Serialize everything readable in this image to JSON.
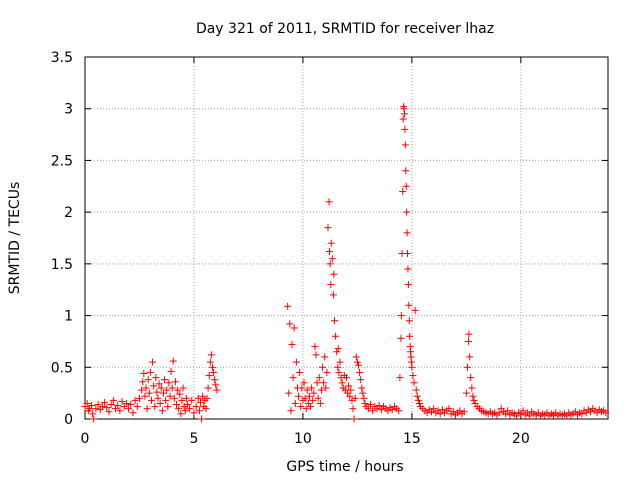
{
  "chart_data": {
    "type": "scatter",
    "title": "Day 321 of 2011, SRMTID for receiver lhaz",
    "xlabel": "GPS time / hours",
    "ylabel": "SRMTID / TECUs",
    "xlim": [
      0,
      24
    ],
    "ylim": [
      0,
      3.5
    ],
    "x_ticks": [
      0,
      5,
      10,
      15,
      20
    ],
    "y_ticks": [
      0,
      0.5,
      1,
      1.5,
      2,
      2.5,
      3,
      3.5
    ],
    "grid": true,
    "marker": "+",
    "color": "#ff0000",
    "series": [
      {
        "points": [
          [
            0.0,
            0.12
          ],
          [
            0.1,
            0.15
          ],
          [
            0.15,
            0.08
          ],
          [
            0.2,
            0.1
          ],
          [
            0.3,
            0.13
          ],
          [
            0.35,
            0.05
          ],
          [
            0.4,
            0.0
          ],
          [
            0.5,
            0.1
          ],
          [
            0.6,
            0.14
          ],
          [
            0.7,
            0.09
          ],
          [
            0.8,
            0.12
          ],
          [
            0.9,
            0.16
          ],
          [
            1.0,
            0.11
          ],
          [
            1.1,
            0.07
          ],
          [
            1.2,
            0.14
          ],
          [
            1.3,
            0.18
          ],
          [
            1.4,
            0.1
          ],
          [
            1.5,
            0.13
          ],
          [
            1.6,
            0.08
          ],
          [
            1.7,
            0.17
          ],
          [
            1.8,
            0.12
          ],
          [
            1.9,
            0.15
          ],
          [
            2.0,
            0.1
          ],
          [
            2.1,
            0.14
          ],
          [
            2.2,
            0.06
          ],
          [
            2.3,
            0.18
          ],
          [
            2.4,
            0.12
          ],
          [
            2.5,
            0.2
          ],
          [
            2.6,
            0.28
          ],
          [
            2.65,
            0.36
          ],
          [
            2.7,
            0.44
          ],
          [
            2.75,
            0.22
          ],
          [
            2.8,
            0.3
          ],
          [
            2.85,
            0.1
          ],
          [
            2.9,
            0.38
          ],
          [
            2.95,
            0.25
          ],
          [
            3.0,
            0.45
          ],
          [
            3.05,
            0.18
          ],
          [
            3.1,
            0.55
          ],
          [
            3.15,
            0.32
          ],
          [
            3.2,
            0.12
          ],
          [
            3.25,
            0.4
          ],
          [
            3.3,
            0.26
          ],
          [
            3.35,
            0.2
          ],
          [
            3.4,
            0.34
          ],
          [
            3.45,
            0.15
          ],
          [
            3.5,
            0.3
          ],
          [
            3.55,
            0.08
          ],
          [
            3.6,
            0.25
          ],
          [
            3.65,
            0.38
          ],
          [
            3.7,
            0.18
          ],
          [
            3.75,
            0.28
          ],
          [
            3.8,
            0.12
          ],
          [
            3.85,
            0.35
          ],
          [
            3.9,
            0.22
          ],
          [
            3.95,
            0.46
          ],
          [
            4.0,
            0.3
          ],
          [
            4.05,
            0.56
          ],
          [
            4.1,
            0.2
          ],
          [
            4.15,
            0.36
          ],
          [
            4.2,
            0.14
          ],
          [
            4.25,
            0.28
          ],
          [
            4.3,
            0.1
          ],
          [
            4.35,
            0.24
          ],
          [
            4.4,
            0.05
          ],
          [
            4.45,
            0.18
          ],
          [
            4.5,
            0.3
          ],
          [
            4.55,
            0.12
          ],
          [
            4.6,
            0.08
          ],
          [
            4.65,
            0.2
          ],
          [
            4.7,
            0.14
          ],
          [
            4.8,
            0.1
          ],
          [
            4.9,
            0.18
          ],
          [
            5.0,
            0.06
          ],
          [
            5.1,
            0.12
          ],
          [
            5.2,
            0.2
          ],
          [
            5.25,
            0.08
          ],
          [
            5.3,
            0.16
          ],
          [
            5.35,
            0.0
          ],
          [
            5.4,
            0.22
          ],
          [
            5.45,
            0.12
          ],
          [
            5.5,
            0.18
          ],
          [
            5.55,
            0.1
          ],
          [
            5.6,
            0.2
          ],
          [
            5.65,
            0.3
          ],
          [
            5.7,
            0.42
          ],
          [
            5.75,
            0.55
          ],
          [
            5.8,
            0.62
          ],
          [
            5.85,
            0.5
          ],
          [
            5.9,
            0.45
          ],
          [
            5.95,
            0.38
          ],
          [
            6.0,
            0.33
          ],
          [
            6.05,
            0.28
          ],
          [
            9.3,
            1.09
          ],
          [
            9.35,
            0.25
          ],
          [
            9.4,
            0.92
          ],
          [
            9.45,
            0.08
          ],
          [
            9.5,
            0.72
          ],
          [
            9.55,
            0.4
          ],
          [
            9.6,
            0.88
          ],
          [
            9.65,
            0.15
          ],
          [
            9.7,
            0.55
          ],
          [
            9.75,
            0.3
          ],
          [
            9.8,
            0.22
          ],
          [
            9.85,
            0.45
          ],
          [
            9.9,
            0.12
          ],
          [
            9.95,
            0.3
          ],
          [
            10.0,
            0.18
          ],
          [
            10.05,
            0.35
          ],
          [
            10.1,
            0.2
          ],
          [
            10.15,
            0.1
          ],
          [
            10.2,
            0.28
          ],
          [
            10.25,
            0.15
          ],
          [
            10.3,
            0.22
          ],
          [
            10.35,
            0.12
          ],
          [
            10.4,
            0.3
          ],
          [
            10.45,
            0.18
          ],
          [
            10.5,
            0.25
          ],
          [
            10.55,
            0.7
          ],
          [
            10.6,
            0.62
          ],
          [
            10.65,
            0.35
          ],
          [
            10.7,
            0.2
          ],
          [
            10.75,
            0.4
          ],
          [
            10.8,
            0.15
          ],
          [
            10.85,
            0.28
          ],
          [
            10.9,
            0.5
          ],
          [
            10.95,
            0.35
          ],
          [
            11.0,
            0.6
          ],
          [
            11.05,
            0.3
          ],
          [
            11.1,
            0.45
          ],
          [
            11.15,
            1.85
          ],
          [
            11.2,
            2.1
          ],
          [
            11.22,
            1.62
          ],
          [
            11.25,
            1.5
          ],
          [
            11.28,
            1.3
          ],
          [
            11.3,
            1.7
          ],
          [
            11.35,
            1.55
          ],
          [
            11.4,
            1.2
          ],
          [
            11.42,
            1.4
          ],
          [
            11.45,
            0.95
          ],
          [
            11.5,
            0.8
          ],
          [
            11.55,
            0.65
          ],
          [
            11.6,
            0.5
          ],
          [
            11.62,
            0.68
          ],
          [
            11.65,
            0.45
          ],
          [
            11.7,
            0.55
          ],
          [
            11.75,
            0.4
          ],
          [
            11.8,
            0.35
          ],
          [
            11.85,
            0.3
          ],
          [
            11.9,
            0.42
          ],
          [
            11.95,
            0.28
          ],
          [
            12.0,
            0.4
          ],
          [
            12.05,
            0.25
          ],
          [
            12.1,
            0.32
          ],
          [
            12.15,
            0.22
          ],
          [
            12.2,
            0.28
          ],
          [
            12.25,
            0.18
          ],
          [
            12.3,
            0.1
          ],
          [
            12.35,
            0.0
          ],
          [
            12.4,
            0.2
          ],
          [
            12.45,
            0.6
          ],
          [
            12.5,
            0.55
          ],
          [
            12.55,
            0.52
          ],
          [
            12.6,
            0.45
          ],
          [
            12.65,
            0.38
          ],
          [
            12.7,
            0.3
          ],
          [
            12.75,
            0.25
          ],
          [
            12.8,
            0.2
          ],
          [
            12.85,
            0.15
          ],
          [
            12.9,
            0.12
          ],
          [
            13.0,
            0.1
          ],
          [
            13.1,
            0.14
          ],
          [
            13.2,
            0.08
          ],
          [
            13.3,
            0.12
          ],
          [
            13.4,
            0.1
          ],
          [
            13.5,
            0.13
          ],
          [
            13.6,
            0.09
          ],
          [
            13.7,
            0.12
          ],
          [
            13.8,
            0.1
          ],
          [
            13.9,
            0.08
          ],
          [
            14.0,
            0.11
          ],
          [
            14.1,
            0.09
          ],
          [
            14.2,
            0.12
          ],
          [
            14.3,
            0.1
          ],
          [
            14.4,
            0.08
          ],
          [
            14.45,
            0.4
          ],
          [
            14.5,
            0.78
          ],
          [
            14.52,
            1.0
          ],
          [
            14.55,
            1.6
          ],
          [
            14.58,
            2.2
          ],
          [
            14.6,
            2.9
          ],
          [
            14.62,
            3.02
          ],
          [
            14.64,
            3.0
          ],
          [
            14.66,
            2.95
          ],
          [
            14.68,
            2.8
          ],
          [
            14.7,
            2.65
          ],
          [
            14.72,
            2.4
          ],
          [
            14.74,
            2.25
          ],
          [
            14.76,
            2.0
          ],
          [
            14.78,
            1.8
          ],
          [
            14.8,
            1.6
          ],
          [
            14.82,
            1.45
          ],
          [
            14.84,
            1.3
          ],
          [
            14.86,
            1.1
          ],
          [
            14.88,
            0.95
          ],
          [
            14.9,
            0.8
          ],
          [
            14.92,
            0.7
          ],
          [
            14.94,
            0.65
          ],
          [
            14.96,
            0.6
          ],
          [
            14.98,
            0.55
          ],
          [
            15.0,
            0.5
          ],
          [
            15.05,
            0.42
          ],
          [
            15.1,
            0.35
          ],
          [
            15.15,
            1.05
          ],
          [
            15.2,
            0.28
          ],
          [
            15.25,
            0.22
          ],
          [
            15.3,
            0.18
          ],
          [
            15.35,
            0.15
          ],
          [
            15.4,
            0.12
          ],
          [
            15.5,
            0.1
          ],
          [
            15.6,
            0.08
          ],
          [
            15.7,
            0.06
          ],
          [
            15.8,
            0.09
          ],
          [
            15.9,
            0.07
          ],
          [
            16.0,
            0.1
          ],
          [
            16.1,
            0.06
          ],
          [
            16.2,
            0.08
          ],
          [
            16.3,
            0.05
          ],
          [
            16.4,
            0.09
          ],
          [
            16.5,
            0.06
          ],
          [
            16.6,
            0.08
          ],
          [
            16.7,
            0.1
          ],
          [
            16.8,
            0.05
          ],
          [
            16.9,
            0.07
          ],
          [
            17.0,
            0.04
          ],
          [
            17.1,
            0.06
          ],
          [
            17.2,
            0.08
          ],
          [
            17.3,
            0.05
          ],
          [
            17.4,
            0.07
          ],
          [
            17.5,
            0.25
          ],
          [
            17.55,
            0.5
          ],
          [
            17.6,
            0.75
          ],
          [
            17.62,
            0.82
          ],
          [
            17.65,
            0.6
          ],
          [
            17.7,
            0.4
          ],
          [
            17.75,
            0.3
          ],
          [
            17.8,
            0.22
          ],
          [
            17.85,
            0.18
          ],
          [
            17.9,
            0.15
          ],
          [
            18.0,
            0.12
          ],
          [
            18.1,
            0.1
          ],
          [
            18.2,
            0.08
          ],
          [
            18.3,
            0.07
          ],
          [
            18.4,
            0.06
          ],
          [
            18.5,
            0.05
          ],
          [
            18.6,
            0.07
          ],
          [
            18.7,
            0.05
          ],
          [
            18.8,
            0.06
          ],
          [
            18.9,
            0.04
          ],
          [
            19.0,
            0.06
          ],
          [
            19.1,
            0.1
          ],
          [
            19.2,
            0.07
          ],
          [
            19.3,
            0.05
          ],
          [
            19.4,
            0.08
          ],
          [
            19.5,
            0.04
          ],
          [
            19.6,
            0.06
          ],
          [
            19.7,
            0.05
          ],
          [
            19.8,
            0.03
          ],
          [
            19.9,
            0.06
          ],
          [
            20.0,
            0.05
          ],
          [
            20.1,
            0.08
          ],
          [
            20.2,
            0.04
          ],
          [
            20.3,
            0.06
          ],
          [
            20.4,
            0.03
          ],
          [
            20.5,
            0.07
          ],
          [
            20.6,
            0.05
          ],
          [
            20.7,
            0.04
          ],
          [
            20.8,
            0.06
          ],
          [
            20.9,
            0.03
          ],
          [
            21.0,
            0.05
          ],
          [
            21.1,
            0.04
          ],
          [
            21.2,
            0.06
          ],
          [
            21.3,
            0.03
          ],
          [
            21.4,
            0.05
          ],
          [
            21.5,
            0.04
          ],
          [
            21.6,
            0.06
          ],
          [
            21.7,
            0.03
          ],
          [
            21.8,
            0.05
          ],
          [
            21.9,
            0.04
          ],
          [
            22.0,
            0.05
          ],
          [
            22.1,
            0.03
          ],
          [
            22.2,
            0.06
          ],
          [
            22.3,
            0.04
          ],
          [
            22.4,
            0.05
          ],
          [
            22.5,
            0.07
          ],
          [
            22.6,
            0.04
          ],
          [
            22.7,
            0.06
          ],
          [
            22.8,
            0.05
          ],
          [
            22.9,
            0.08
          ],
          [
            23.0,
            0.06
          ],
          [
            23.1,
            0.09
          ],
          [
            23.2,
            0.07
          ],
          [
            23.3,
            0.1
          ],
          [
            23.4,
            0.08
          ],
          [
            23.5,
            0.06
          ],
          [
            23.6,
            0.09
          ],
          [
            23.7,
            0.07
          ],
          [
            23.8,
            0.08
          ],
          [
            23.9,
            0.06
          ]
        ]
      }
    ]
  }
}
